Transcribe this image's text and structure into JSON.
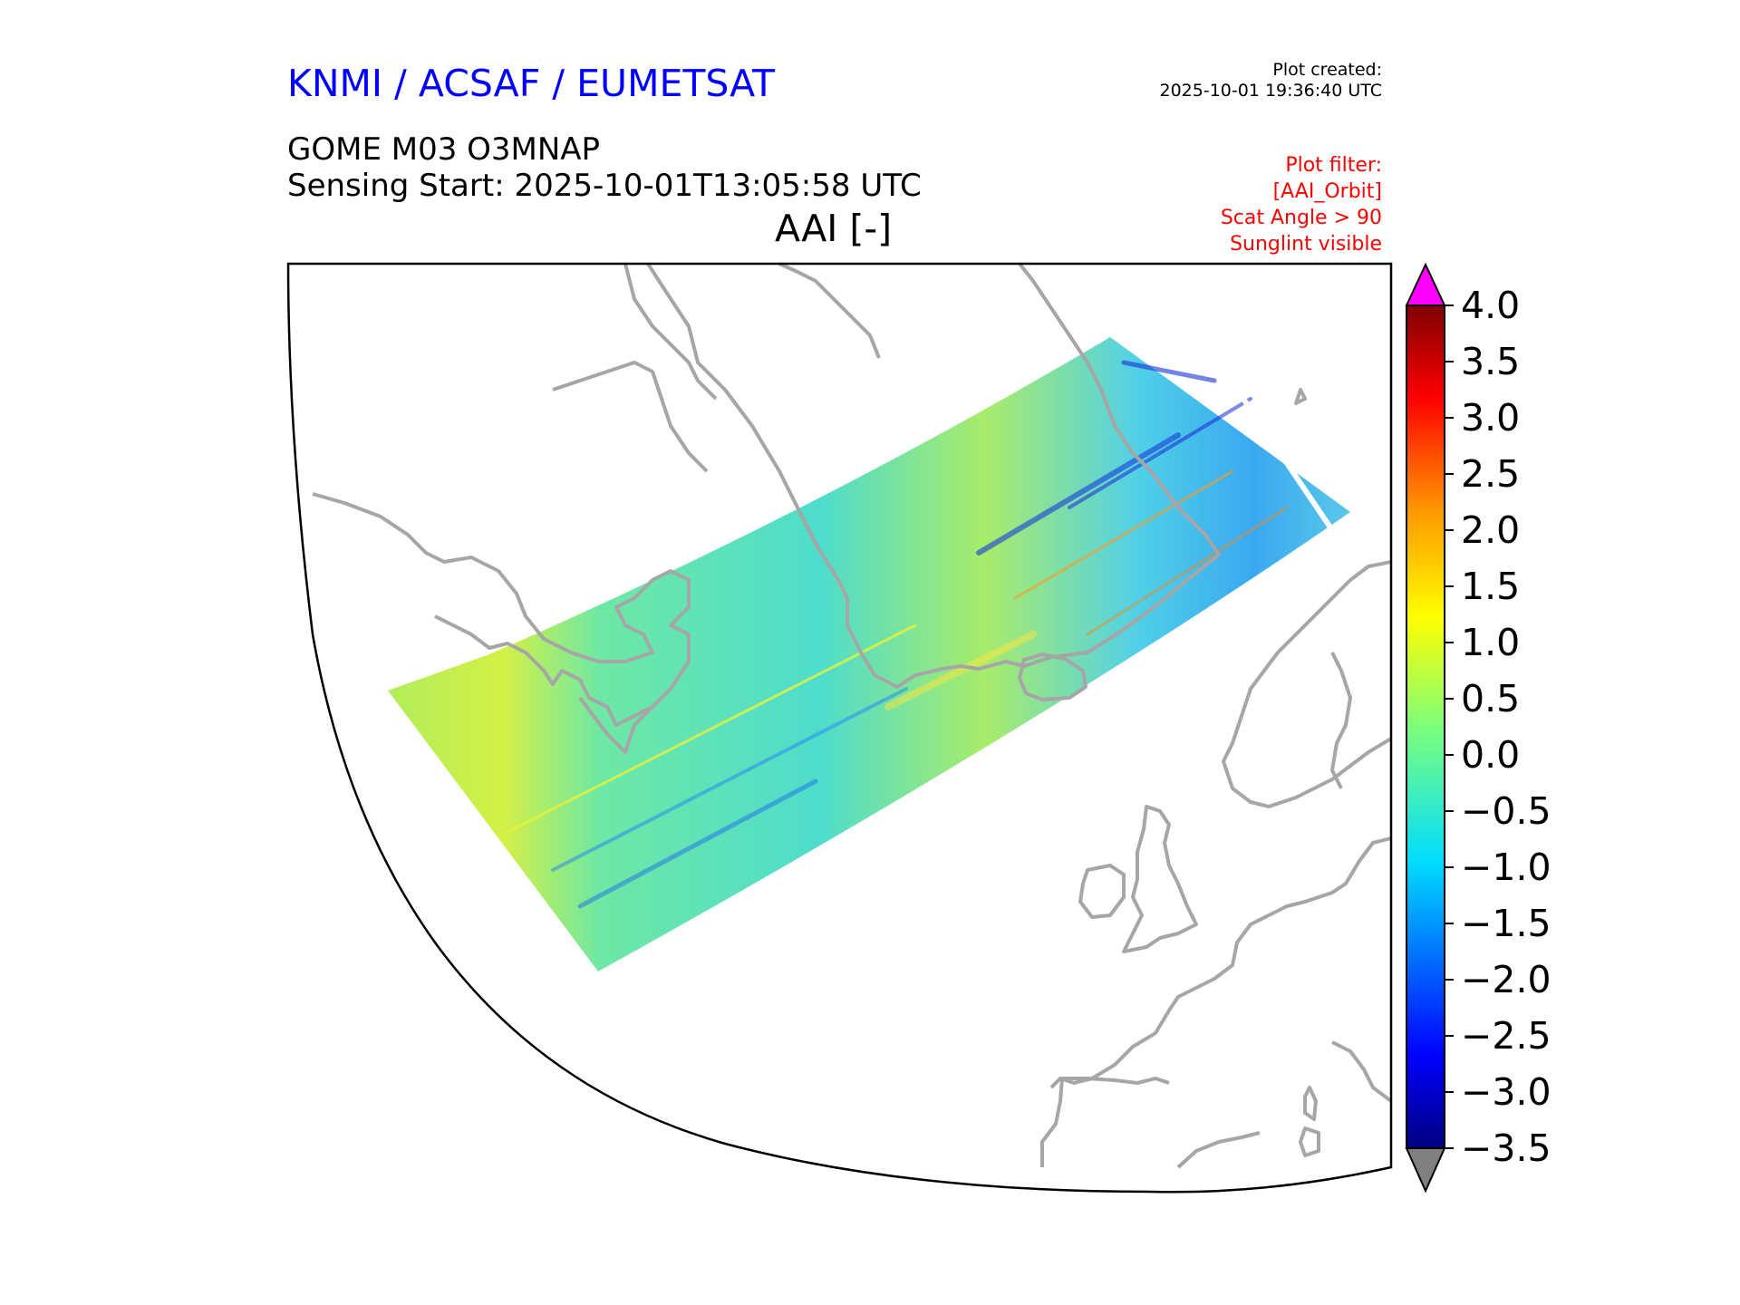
{
  "header": {
    "brand": "KNMI / ACSAF / EUMETSAT",
    "created_label": "Plot created:",
    "created_time": "2025-10-01 19:36:40 UTC",
    "product": "GOME M03 O3MNAP",
    "sensing_start": "Sensing Start: 2025-10-01T13:05:58 UTC",
    "variable": "AAI [-]"
  },
  "filter": {
    "title": "Plot filter:",
    "lines": [
      "[AAI_Orbit]",
      "Scat Angle > 90",
      "Sunglint visible"
    ]
  },
  "colorbar": {
    "ticks": [
      "4.0",
      "3.5",
      "3.0",
      "2.5",
      "2.0",
      "1.5",
      "1.0",
      "0.5",
      "0.0",
      "−0.5",
      "−1.0",
      "−1.5",
      "−2.0",
      "−2.5",
      "−3.0",
      "−3.5"
    ],
    "min": -3.5,
    "max": 4.0,
    "over_color": "#ff00ff",
    "under_color": "#808080",
    "colormap": "jet"
  },
  "colors": {
    "coastline": "#a6a6a6",
    "frame": "#000000"
  }
}
